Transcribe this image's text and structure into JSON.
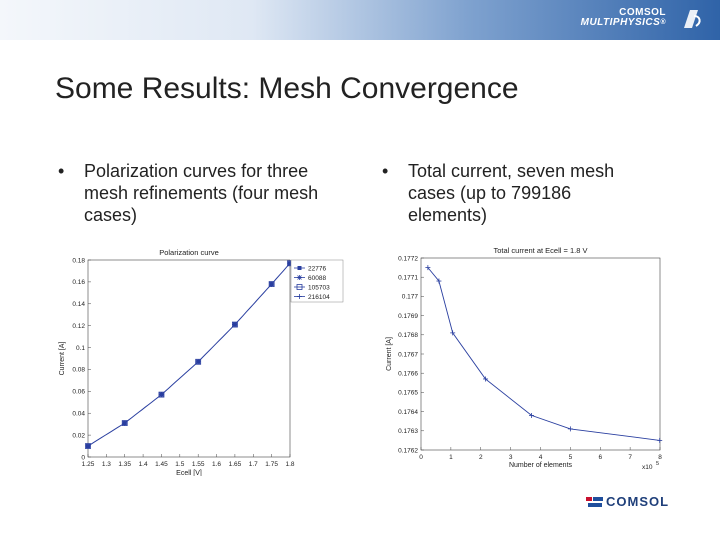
{
  "header": {
    "brand_line1": "COMSOL",
    "brand_line2": "MULTIPHYSICS",
    "brand_mark": "®",
    "logo_icon": "comsol-swirl-icon"
  },
  "slide": {
    "title": "Some Results: Mesh Convergence",
    "bullets": [
      {
        "marker": "•",
        "lines": [
          "Polarization curves for three",
          "mesh refinements (four mesh",
          "cases)"
        ]
      },
      {
        "marker": "•",
        "lines": [
          "Total current, seven mesh",
          "cases (up to 799186",
          "elements)"
        ]
      }
    ]
  },
  "footer": {
    "logo_text": "COMSOL",
    "logo_icon": "comsol-flag-icon"
  },
  "chart_data": [
    {
      "type": "line",
      "title": "Polarization curve",
      "xlabel": "Ecell [V]",
      "ylabel": "Current [A]",
      "xlim": [
        1.25,
        1.8
      ],
      "ylim": [
        0,
        0.18
      ],
      "xticks": [
        "1.25",
        "1.3",
        "1.35",
        "1.4",
        "1.45",
        "1.5",
        "1.55",
        "1.6",
        "1.65",
        "1.7",
        "1.75",
        "1.8"
      ],
      "yticks": [
        "0",
        "0.02",
        "0.04",
        "0.06",
        "0.08",
        "0.1",
        "0.12",
        "0.14",
        "0.16",
        "0.18"
      ],
      "legend_position": "top-right",
      "series": [
        {
          "name": "22776",
          "color": "#2a3fa0",
          "marker": "square",
          "x": [
            1.25,
            1.35,
            1.45,
            1.55,
            1.65,
            1.75,
            1.8
          ],
          "y": [
            0.01,
            0.031,
            0.057,
            0.087,
            0.121,
            0.158,
            0.177
          ]
        },
        {
          "name": "60088",
          "color": "#2a3fa0",
          "marker": "star",
          "x": [
            1.25,
            1.35,
            1.45,
            1.55,
            1.65,
            1.75,
            1.8
          ],
          "y": [
            0.01,
            0.031,
            0.057,
            0.087,
            0.121,
            0.158,
            0.177
          ]
        },
        {
          "name": "105703",
          "color": "#2a3fa0",
          "marker": "square-open",
          "x": [
            1.25,
            1.35,
            1.45,
            1.55,
            1.65,
            1.75,
            1.8
          ],
          "y": [
            0.01,
            0.031,
            0.057,
            0.087,
            0.121,
            0.158,
            0.177
          ]
        },
        {
          "name": "216104",
          "color": "#2a3fa0",
          "marker": "plus",
          "x": [
            1.25,
            1.35,
            1.45,
            1.55,
            1.65,
            1.75,
            1.8
          ],
          "y": [
            0.01,
            0.031,
            0.057,
            0.087,
            0.121,
            0.158,
            0.177
          ]
        }
      ],
      "grid": false
    },
    {
      "type": "line",
      "title": "Total current at Ecell = 1.8 V",
      "xlabel": "Number of elements",
      "ylabel": "Current [A]",
      "x_scale_label": "x10",
      "x_scale_exp": "5",
      "xlim": [
        0,
        8
      ],
      "ylim": [
        0.1762,
        0.1772
      ],
      "xticks": [
        "0",
        "1",
        "2",
        "3",
        "4",
        "5",
        "6",
        "7",
        "8"
      ],
      "yticks": [
        "0.1762",
        "0.1763",
        "0.1764",
        "0.1765",
        "0.1766",
        "0.1767",
        "0.1768",
        "0.1769",
        "0.177",
        "0.1771",
        "0.1772"
      ],
      "series": [
        {
          "color": "#2a3fa0",
          "marker": "plus",
          "x": [
            0.23,
            0.6,
            1.06,
            2.16,
            3.7,
            5.0,
            7.99
          ],
          "y": [
            0.17715,
            0.17708,
            0.17681,
            0.17657,
            0.17638,
            0.17631,
            0.17625
          ]
        }
      ],
      "grid": false
    }
  ]
}
